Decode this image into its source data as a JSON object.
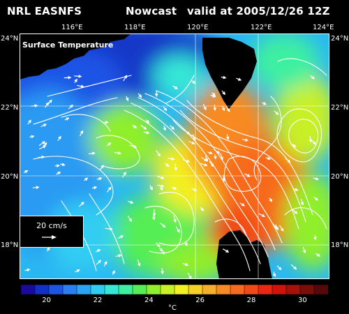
{
  "header": {
    "left": "NRL EASNFS",
    "middle": "Nowcast",
    "right": "valid at 2005/12/26 12Z"
  },
  "map": {
    "title": "Surface Temperature",
    "lon_labels": [
      "116°E",
      "118°E",
      "120°E",
      "122°E",
      "124°E"
    ],
    "lat_labels": [
      "24°N",
      "22°N",
      "20°N",
      "18°N"
    ],
    "velocity_scale_label": "20 cm/s",
    "colors": {
      "land": "#000000",
      "current_arrows": "#ffffff"
    }
  },
  "colorbar": {
    "labels": [
      "20",
      "22",
      "24",
      "26",
      "28",
      "30"
    ],
    "unit": "°C",
    "min": 19,
    "max": 31,
    "colors": [
      "#1a0aa0",
      "#1230c8",
      "#1c55e6",
      "#2a7df2",
      "#2aa5f5",
      "#30cdf2",
      "#35e8d6",
      "#3cf0a0",
      "#55ee55",
      "#8fef2a",
      "#c8f026",
      "#f2f024",
      "#f6d028",
      "#f8ae28",
      "#f88a24",
      "#f76a1e",
      "#f24a16",
      "#e82810",
      "#d0140c",
      "#a8100a",
      "#7c0c08",
      "#56080a"
    ]
  }
}
